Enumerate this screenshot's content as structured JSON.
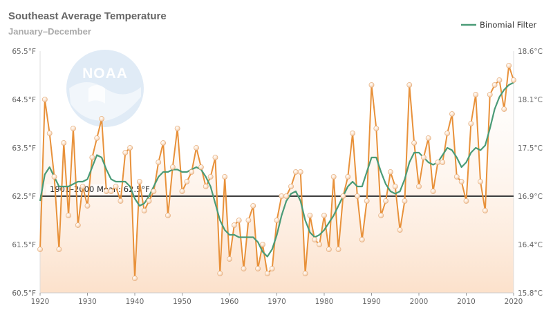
{
  "chart_data": {
    "type": "line",
    "title": "Southeast Average Temperature",
    "subtitle": "January–December",
    "xlim": [
      1920,
      2020
    ],
    "ylim": [
      60.5,
      65.5
    ],
    "x_ticks": [
      1920,
      1930,
      1940,
      1950,
      1960,
      1970,
      1980,
      1990,
      2000,
      2010,
      2020
    ],
    "x_tick_labels": [
      "1920",
      "1930",
      "1940",
      "1950",
      "1960",
      "1970",
      "1980",
      "1990",
      "2000",
      "2010",
      "2020"
    ],
    "y_left_ticks": [
      60.5,
      61.5,
      62.5,
      63.5,
      64.5,
      65.5
    ],
    "y_left_tick_labels": [
      "60.5°F",
      "61.5°F",
      "62.5°F",
      "63.5°F",
      "64.5°F",
      "65.5°F"
    ],
    "y_right_ticks": [
      15.8,
      16.4,
      16.9,
      17.5,
      18.1,
      18.6
    ],
    "y_right_tick_labels": [
      "15.8°C",
      "16.4°C",
      "16.9°C",
      "17.5°C",
      "18.1°C",
      "18.6°C"
    ],
    "grid": false,
    "legend_position": "top-right",
    "mean": {
      "value": 62.5,
      "label": "1901–2000 Mean: 62.5°F"
    },
    "series": [
      {
        "name": "",
        "color": "#e8913a",
        "x": [
          1920,
          1921,
          1922,
          1923,
          1924,
          1925,
          1926,
          1927,
          1928,
          1929,
          1930,
          1931,
          1932,
          1933,
          1934,
          1935,
          1936,
          1937,
          1938,
          1939,
          1940,
          1941,
          1942,
          1943,
          1944,
          1945,
          1946,
          1947,
          1948,
          1949,
          1950,
          1951,
          1952,
          1953,
          1954,
          1955,
          1956,
          1957,
          1958,
          1959,
          1960,
          1961,
          1962,
          1963,
          1964,
          1965,
          1966,
          1967,
          1968,
          1969,
          1970,
          1971,
          1972,
          1973,
          1974,
          1975,
          1976,
          1977,
          1978,
          1979,
          1980,
          1981,
          1982,
          1983,
          1984,
          1985,
          1986,
          1987,
          1988,
          1989,
          1990,
          1991,
          1992,
          1993,
          1994,
          1995,
          1996,
          1997,
          1998,
          1999,
          2000,
          2001,
          2002,
          2003,
          2004,
          2005,
          2006,
          2007,
          2008,
          2009,
          2010,
          2011,
          2012,
          2013,
          2014,
          2015,
          2016,
          2017,
          2018,
          2019,
          2020
        ],
        "values": [
          61.4,
          64.5,
          63.8,
          62.9,
          61.4,
          63.6,
          62.1,
          63.9,
          61.9,
          62.7,
          62.3,
          63.3,
          63.7,
          64.1,
          62.6,
          62.6,
          62.7,
          62.4,
          63.4,
          63.5,
          60.8,
          62.8,
          62.2,
          62.4,
          62.6,
          63.2,
          63.6,
          62.1,
          63.1,
          63.9,
          62.6,
          62.8,
          63.0,
          63.5,
          63.1,
          62.7,
          62.9,
          63.3,
          60.9,
          62.9,
          61.2,
          61.9,
          62.0,
          61.0,
          62.0,
          62.3,
          61.0,
          61.5,
          60.9,
          61.0,
          62.0,
          62.5,
          62.5,
          62.7,
          63.0,
          63.0,
          60.9,
          62.1,
          61.6,
          61.5,
          62.1,
          61.4,
          62.9,
          61.4,
          62.5,
          62.9,
          63.8,
          62.5,
          61.6,
          62.4,
          64.8,
          63.9,
          62.1,
          62.4,
          63.0,
          62.7,
          61.8,
          62.4,
          64.8,
          63.6,
          62.7,
          63.3,
          63.7,
          62.6,
          63.2,
          63.2,
          63.8,
          64.2,
          62.9,
          62.8,
          62.4,
          64.0,
          64.6,
          62.8,
          62.2,
          64.6,
          64.8,
          64.9,
          64.3,
          65.2,
          64.9
        ]
      },
      {
        "name": "Binomial Filter",
        "color": "#4a9b77",
        "x": [
          1920,
          1921,
          1922,
          1923,
          1924,
          1925,
          1926,
          1927,
          1928,
          1929,
          1930,
          1931,
          1932,
          1933,
          1934,
          1935,
          1936,
          1937,
          1938,
          1939,
          1940,
          1941,
          1942,
          1943,
          1944,
          1945,
          1946,
          1947,
          1948,
          1949,
          1950,
          1951,
          1952,
          1953,
          1954,
          1955,
          1956,
          1957,
          1958,
          1959,
          1960,
          1961,
          1962,
          1963,
          1964,
          1965,
          1966,
          1967,
          1968,
          1969,
          1970,
          1971,
          1972,
          1973,
          1974,
          1975,
          1976,
          1977,
          1978,
          1979,
          1980,
          1981,
          1982,
          1983,
          1984,
          1985,
          1986,
          1987,
          1988,
          1989,
          1990,
          1991,
          1992,
          1993,
          1994,
          1995,
          1996,
          1997,
          1998,
          1999,
          2000,
          2001,
          2002,
          2003,
          2004,
          2005,
          2006,
          2007,
          2008,
          2009,
          2010,
          2011,
          2012,
          2013,
          2014,
          2015,
          2016,
          2017,
          2018,
          2019,
          2020
        ],
        "values": [
          62.4,
          62.95,
          63.1,
          62.9,
          62.7,
          62.7,
          62.7,
          62.75,
          62.8,
          62.8,
          62.85,
          63.1,
          63.35,
          63.3,
          63.05,
          62.85,
          62.8,
          62.8,
          62.8,
          62.7,
          62.45,
          62.3,
          62.35,
          62.5,
          62.7,
          62.9,
          63.0,
          63.0,
          63.05,
          63.05,
          63.0,
          63.0,
          63.05,
          63.1,
          63.05,
          62.9,
          62.7,
          62.35,
          62.0,
          61.8,
          61.7,
          61.7,
          61.65,
          61.65,
          61.65,
          61.65,
          61.55,
          61.35,
          61.25,
          61.4,
          61.7,
          62.1,
          62.4,
          62.55,
          62.6,
          62.4,
          62.0,
          61.75,
          61.65,
          61.7,
          61.8,
          61.95,
          62.1,
          62.3,
          62.5,
          62.7,
          62.8,
          62.7,
          62.7,
          63.0,
          63.3,
          63.3,
          63.0,
          62.75,
          62.6,
          62.55,
          62.6,
          62.85,
          63.2,
          63.4,
          63.4,
          63.3,
          63.2,
          63.15,
          63.2,
          63.35,
          63.5,
          63.45,
          63.3,
          63.1,
          63.2,
          63.4,
          63.5,
          63.45,
          63.55,
          63.9,
          64.3,
          64.55,
          64.7,
          64.8,
          64.85
        ]
      }
    ]
  },
  "colors": {
    "raw_line": "#e8913a",
    "filter_line": "#4a9b77",
    "mean_line": "#3d3d3d",
    "fill_top": "#ffffff",
    "fill_bottom": "#fce1cb",
    "logo": "#c7dbef"
  },
  "logo": {
    "text": "NOAA",
    "icon": "noaa-logo-watermark"
  }
}
